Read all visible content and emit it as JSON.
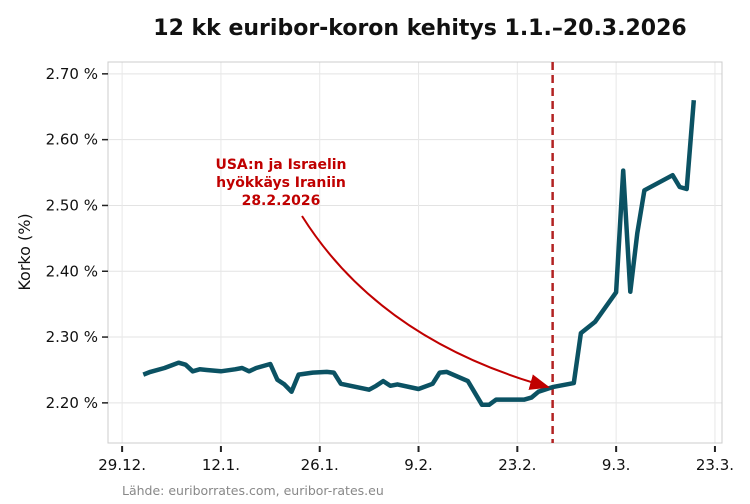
{
  "chart_data": {
    "type": "line",
    "title": "12 kk euribor-koron kehitys 1.1.–20.3.2026",
    "ylabel": "Korko (%)",
    "xlabel": "",
    "source": "Lähde: euriborrates.com, euribor-rates.eu",
    "ylim": [
      2.139,
      2.718
    ],
    "xlim": [
      "2025-12-27",
      "2026-03-24"
    ],
    "grid": true,
    "y_ticks": [
      2.2,
      2.3,
      2.4,
      2.5,
      2.6,
      2.7
    ],
    "y_tick_labels": [
      "2.20 %",
      "2.30 %",
      "2.40 %",
      "2.50 %",
      "2.60 %",
      "2.70 %"
    ],
    "x_ticks": [
      "2025-12-29",
      "2026-01-12",
      "2026-01-26",
      "2026-02-09",
      "2026-02-23",
      "2026-03-09",
      "2026-03-23"
    ],
    "x_tick_labels": [
      "29.12.",
      "12.1.",
      "26.1.",
      "9.2.",
      "23.2.",
      "9.3.",
      "23.3."
    ],
    "line_color": "#0b5263",
    "annotation": {
      "date": "2026-02-28",
      "lines": [
        "USA:n ja Israelin",
        "hyökkäys Iraniin",
        "28.2.2026"
      ],
      "color": "#c00000"
    },
    "series": [
      {
        "x": [
          "2026-01-01",
          "2026-01-02",
          "2026-01-04",
          "2026-01-05",
          "2026-01-06",
          "2026-01-07",
          "2026-01-08",
          "2026-01-09",
          "2026-01-10",
          "2026-01-12",
          "2026-01-14",
          "2026-01-15",
          "2026-01-16",
          "2026-01-17",
          "2026-01-19",
          "2026-01-20",
          "2026-01-21",
          "2026-01-22",
          "2026-01-23",
          "2026-01-25",
          "2026-01-27",
          "2026-01-28",
          "2026-01-29",
          "2026-02-02",
          "2026-02-03",
          "2026-02-04",
          "2026-02-05",
          "2026-02-06",
          "2026-02-09",
          "2026-02-11",
          "2026-02-12",
          "2026-02-13",
          "2026-02-16",
          "2026-02-18",
          "2026-02-19",
          "2026-02-20",
          "2026-02-24",
          "2026-02-25",
          "2026-02-26",
          "2026-02-28",
          "2026-03-03",
          "2026-03-04",
          "2026-03-06",
          "2026-03-09",
          "2026-03-10",
          "2026-03-11",
          "2026-03-12",
          "2026-03-13",
          "2026-03-17",
          "2026-03-18",
          "2026-03-19",
          "2026-03-20"
        ],
        "values": [
          2.243,
          2.247,
          2.253,
          2.257,
          2.261,
          2.258,
          2.248,
          2.251,
          2.25,
          2.248,
          2.251,
          2.253,
          2.248,
          2.253,
          2.259,
          2.235,
          2.228,
          2.217,
          2.243,
          2.246,
          2.247,
          2.246,
          2.229,
          2.22,
          2.226,
          2.233,
          2.226,
          2.228,
          2.221,
          2.229,
          2.246,
          2.247,
          2.233,
          2.197,
          2.197,
          2.205,
          2.205,
          2.208,
          2.217,
          2.224,
          2.23,
          2.306,
          2.323,
          2.368,
          2.553,
          2.369,
          2.458,
          2.523,
          2.546,
          2.528,
          2.525,
          2.66
        ]
      }
    ]
  }
}
